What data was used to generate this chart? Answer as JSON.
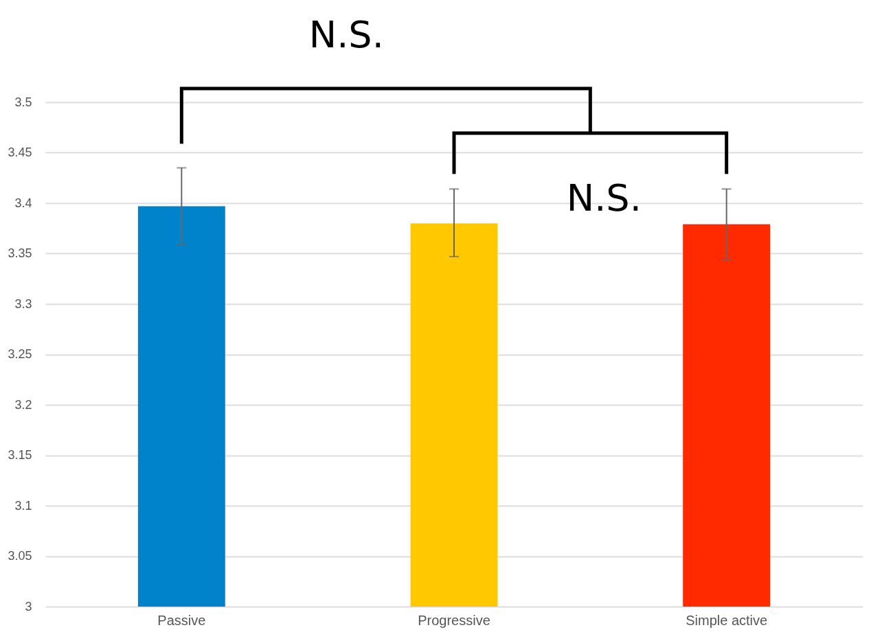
{
  "chart_data": {
    "type": "bar",
    "categories": [
      "Passive",
      "Progressive",
      "Simple active"
    ],
    "values": [
      3.397,
      3.38,
      3.379
    ],
    "colors": [
      "#0083cb",
      "#ffc800",
      "#ff2a00"
    ],
    "errors": [
      [
        3.359,
        3.435
      ],
      [
        3.347,
        3.414
      ],
      [
        3.344,
        3.414
      ]
    ],
    "ylim": [
      3,
      3.5
    ],
    "yticks": [
      3,
      3.05,
      3.1,
      3.15,
      3.2,
      3.25,
      3.3,
      3.35,
      3.4,
      3.45,
      3.5
    ],
    "grid": "y",
    "annotations": [
      "N.S.",
      "N.S."
    ]
  }
}
